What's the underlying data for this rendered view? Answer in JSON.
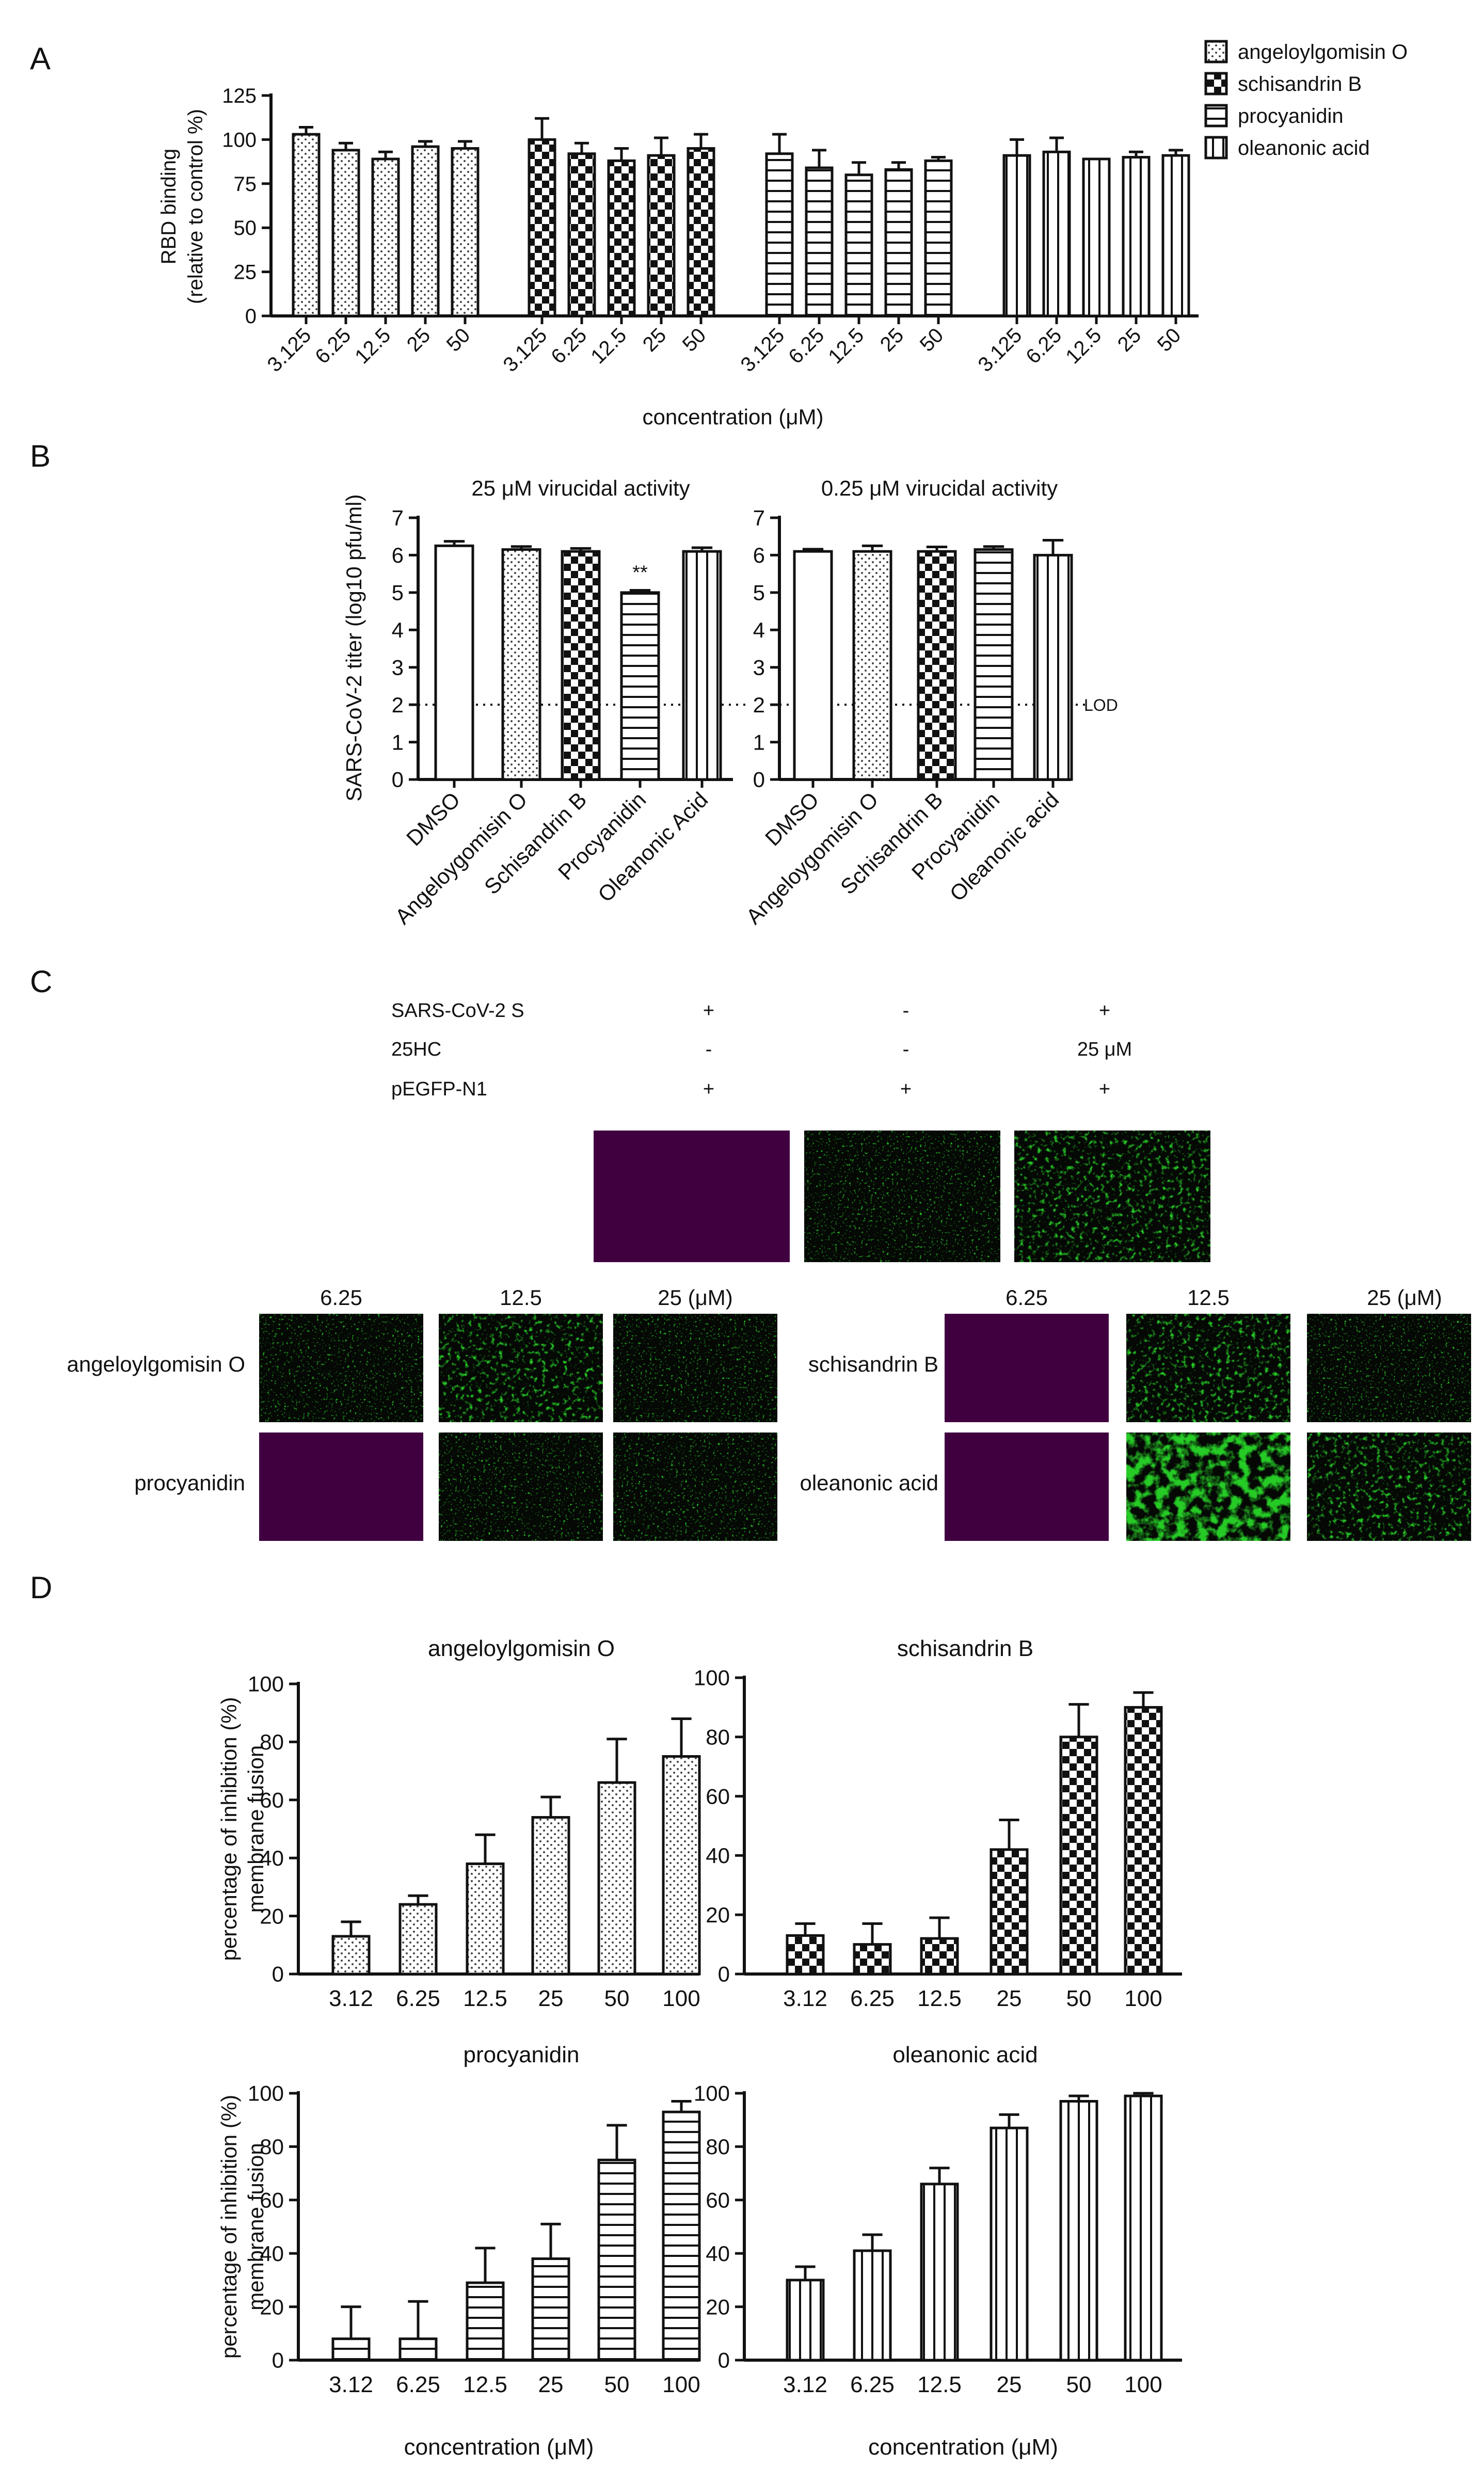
{
  "panels": {
    "A": {
      "letter": "A",
      "legend": [
        {
          "label": "angeloylgomisin O",
          "pattern": "dots"
        },
        {
          "label": "schisandrin B",
          "pattern": "checker"
        },
        {
          "label": "procyanidin",
          "pattern": "hlines"
        },
        {
          "label": "oleanonic acid",
          "pattern": "vlines"
        }
      ]
    },
    "B": {
      "letter": "B",
      "lod_label": "LOD",
      "sig_label": "**"
    },
    "C": {
      "letter": "C",
      "conditions": [
        {
          "label": "SARS-CoV-2 S",
          "values": [
            "+",
            "-",
            "+"
          ]
        },
        {
          "label": "25HC",
          "values": [
            "-",
            "-",
            "25 μM"
          ]
        },
        {
          "label": "pEGFP-N1",
          "values": [
            "+",
            "+",
            "+"
          ]
        }
      ],
      "left_group": {
        "columns": [
          "6.25",
          "12.5",
          "25 (μM)"
        ],
        "rows": [
          "angeloylgomisin O",
          "procyanidin"
        ]
      },
      "right_group": {
        "columns": [
          "6.25",
          "12.5",
          "25 (μM)"
        ],
        "rows": [
          "schisandrin B",
          "oleanonic acid"
        ]
      }
    },
    "D": {
      "letter": "D"
    }
  },
  "chart_data": [
    {
      "id": "A",
      "type": "bar",
      "ylabel": "RBD binding (relative to control %)",
      "xlabel": "concentration (μM)",
      "ylim": [
        0,
        125
      ],
      "yticks": [
        0,
        25,
        50,
        75,
        100,
        125
      ],
      "categories": [
        "3.125",
        "6.25",
        "12.5",
        "25",
        "50"
      ],
      "series": [
        {
          "name": "angeloylgomisin O",
          "pattern": "dots",
          "values": [
            103,
            94,
            89,
            96,
            95
          ],
          "errors": [
            4,
            4,
            4,
            3,
            4
          ]
        },
        {
          "name": "schisandrin B",
          "pattern": "checker",
          "values": [
            100,
            92,
            88,
            91,
            95
          ],
          "errors": [
            12,
            6,
            7,
            10,
            8
          ]
        },
        {
          "name": "procyanidin",
          "pattern": "hlines",
          "values": [
            92,
            84,
            80,
            83,
            88
          ],
          "errors": [
            11,
            10,
            7,
            4,
            2
          ]
        },
        {
          "name": "oleanonic acid",
          "pattern": "vlines",
          "values": [
            91,
            93,
            89,
            90,
            91
          ],
          "errors": [
            9,
            8,
            0,
            3,
            3
          ]
        }
      ]
    },
    {
      "id": "B1",
      "type": "bar",
      "title": "25 μM virucidal activity",
      "ylabel": "SARS-CoV-2 titer (log10 pfu/ml)",
      "ylim": [
        0,
        7
      ],
      "yticks": [
        0,
        1,
        2,
        3,
        4,
        5,
        6,
        7
      ],
      "lod": 2,
      "categories": [
        "DMSO",
        "Angeloygomisin O",
        "Schisandrin B",
        "Procyanidin",
        "Oleanonic Acid"
      ],
      "patterns": [
        "none",
        "dots",
        "checker",
        "hlines",
        "vlines"
      ],
      "values": [
        6.25,
        6.15,
        6.1,
        5.0,
        6.1
      ],
      "errors": [
        0.12,
        0.08,
        0.08,
        0.06,
        0.1
      ],
      "significance": [
        null,
        null,
        null,
        "**",
        null
      ]
    },
    {
      "id": "B2",
      "type": "bar",
      "title": "0.25 μM virucidal activity",
      "ylim": [
        0,
        7
      ],
      "yticks": [
        0,
        1,
        2,
        3,
        4,
        5,
        6,
        7
      ],
      "lod": 2,
      "categories": [
        "DMSO",
        "Angeloygomisin O",
        "Schisandrin B",
        "Procyanidin",
        "Oleanonic acid"
      ],
      "patterns": [
        "none",
        "dots",
        "checker",
        "hlines",
        "vlines"
      ],
      "values": [
        6.1,
        6.1,
        6.1,
        6.15,
        6.0
      ],
      "errors": [
        0.06,
        0.15,
        0.12,
        0.08,
        0.4
      ]
    },
    {
      "id": "D1",
      "type": "bar",
      "title": "angeloylgomisin O",
      "ylabel": "percentage of inhibition (%) membrane fusion",
      "ylim": [
        0,
        100
      ],
      "yticks": [
        0,
        20,
        40,
        60,
        80,
        100
      ],
      "categories": [
        "3.12",
        "6.25",
        "12.5",
        "25",
        "50",
        "100"
      ],
      "pattern": "dots",
      "values": [
        13,
        24,
        38,
        54,
        66,
        75
      ],
      "errors": [
        5,
        3,
        10,
        7,
        15,
        13
      ]
    },
    {
      "id": "D2",
      "type": "bar",
      "title": "schisandrin B",
      "ylim": [
        0,
        100
      ],
      "yticks": [
        0,
        20,
        40,
        60,
        80,
        100
      ],
      "categories": [
        "3.12",
        "6.25",
        "12.5",
        "25",
        "50",
        "100"
      ],
      "pattern": "checker",
      "values": [
        13,
        10,
        12,
        42,
        80,
        90
      ],
      "errors": [
        4,
        7,
        7,
        10,
        11,
        5
      ]
    },
    {
      "id": "D3",
      "type": "bar",
      "title": "procyanidin",
      "ylabel": "percentage of inhibition (%) membrane fusion",
      "xlabel": "concentration (μM)",
      "ylim": [
        0,
        100
      ],
      "yticks": [
        0,
        20,
        40,
        60,
        80,
        100
      ],
      "categories": [
        "3.12",
        "6.25",
        "12.5",
        "25",
        "50",
        "100"
      ],
      "pattern": "hlines",
      "values": [
        8,
        8,
        29,
        38,
        75,
        93
      ],
      "errors": [
        12,
        14,
        13,
        13,
        13,
        4
      ]
    },
    {
      "id": "D4",
      "type": "bar",
      "title": "oleanonic acid",
      "xlabel": "concentration (μM)",
      "ylim": [
        0,
        100
      ],
      "yticks": [
        0,
        20,
        40,
        60,
        80,
        100
      ],
      "categories": [
        "3.12",
        "6.25",
        "12.5",
        "25",
        "50",
        "100"
      ],
      "pattern": "vlines",
      "values": [
        30,
        41,
        66,
        87,
        97,
        99
      ],
      "errors": [
        5,
        6,
        6,
        5,
        2,
        1
      ]
    }
  ]
}
